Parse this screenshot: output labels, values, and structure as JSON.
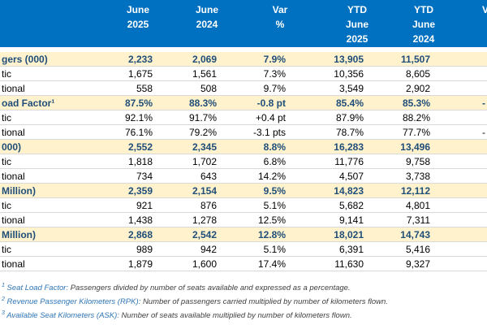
{
  "header": {
    "columns": [
      [
        "June",
        "2025"
      ],
      [
        "June",
        "2024"
      ],
      [
        "Var",
        "%"
      ],
      [
        "YTD",
        "June",
        "2025"
      ],
      [
        "YTD",
        "June",
        "2024"
      ],
      [
        "V"
      ]
    ]
  },
  "table": {
    "rows": [
      {
        "highlight": true,
        "cells": [
          "gers (000)",
          "2,233",
          "2,069",
          "7.9%",
          "13,905",
          "11,507"
        ]
      },
      {
        "cells": [
          "tic",
          "1,675",
          "1,561",
          "7.3%",
          "10,356",
          "8,605"
        ]
      },
      {
        "cells": [
          "tional",
          "558",
          "508",
          "9.7%",
          "3,549",
          "2,902"
        ]
      },
      {
        "highlight": true,
        "cells": [
          "oad Factor¹",
          "87.5%",
          "88.3%",
          "-0.8 pt",
          "85.4%",
          "85.3%",
          "-"
        ]
      },
      {
        "cells": [
          "tic",
          "92.1%",
          "91.7%",
          "+0.4 pt",
          "87.9%",
          "88.2%"
        ]
      },
      {
        "cells": [
          "tional",
          "76.1%",
          "79.2%",
          "-3.1 pts",
          "78.7%",
          "77.7%",
          "-"
        ]
      },
      {
        "highlight": true,
        "cells": [
          "000)",
          "2,552",
          "2,345",
          "8.8%",
          "16,283",
          "13,496"
        ]
      },
      {
        "cells": [
          "tic",
          "1,818",
          "1,702",
          "6.8%",
          "11,776",
          "9,758"
        ]
      },
      {
        "cells": [
          "tional",
          "734",
          "643",
          "14.2%",
          "4,507",
          "3,738"
        ]
      },
      {
        "highlight": true,
        "cells": [
          "Million)",
          "2,359",
          "2,154",
          "9.5%",
          "14,823",
          "12,112"
        ]
      },
      {
        "cells": [
          "tic",
          "921",
          "876",
          "5.1%",
          "5,682",
          "4,801"
        ]
      },
      {
        "cells": [
          "tional",
          "1,438",
          "1,278",
          "12.5%",
          "9,141",
          "7,311"
        ]
      },
      {
        "highlight": true,
        "cells": [
          "Million)",
          "2,868",
          "2,542",
          "12.8%",
          "18,021",
          "14,743"
        ]
      },
      {
        "cells": [
          "tic",
          "989",
          "942",
          "5.1%",
          "6,391",
          "5,416"
        ]
      },
      {
        "cells": [
          "tional",
          "1,879",
          "1,600",
          "17.4%",
          "11,630",
          "9,327"
        ]
      }
    ]
  },
  "footnotes": [
    {
      "mark": "1",
      "term": "Seat Load Factor:",
      "text": "Passengers divided by number of seats available and expressed as a percentage."
    },
    {
      "mark": "2",
      "term": "Revenue Passenger Kilometers (RPK):",
      "text": "Number of passengers carried multiplied by number of kilometers flown."
    },
    {
      "mark": "3",
      "term": "Available Seat Kilometers (ASK):",
      "text": "Number of seats available multiplied by number of kilometers flown."
    }
  ]
}
